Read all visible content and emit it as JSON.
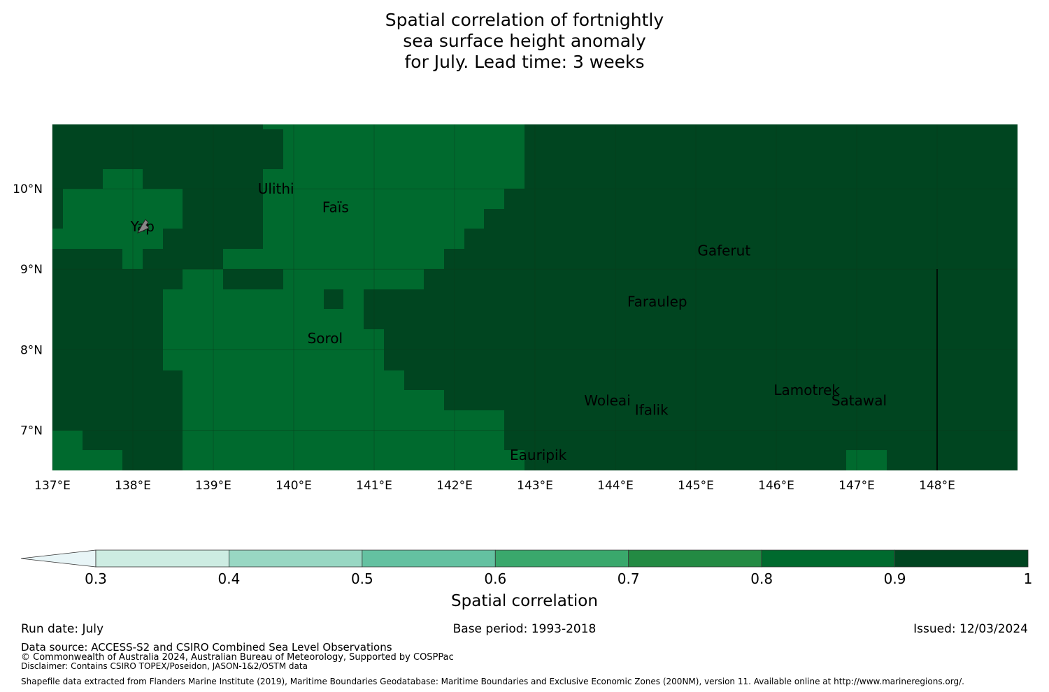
{
  "title_lines": [
    "Spatial correlation of fortnightly",
    "sea surface height anomaly",
    "for July. Lead time: 3 weeks"
  ],
  "map": {
    "lon_range": [
      137.0,
      149.0
    ],
    "lat_range": [
      6.5,
      10.8
    ],
    "x_ticks": [
      "137°E",
      "138°E",
      "139°E",
      "140°E",
      "141°E",
      "142°E",
      "143°E",
      "144°E",
      "145°E",
      "146°E",
      "147°E",
      "148°E"
    ],
    "y_ticks": [
      "10°N",
      "9°N",
      "8°N",
      "7°N"
    ],
    "colors": {
      "0.8-0.9": "#006a2e",
      "0.9-1": "#004520"
    },
    "islands": [
      {
        "name": "Yap",
        "lon": 138.12,
        "lat": 9.53
      },
      {
        "name": "Ulithi",
        "lon": 139.78,
        "lat": 10.0
      },
      {
        "name": "Faïs",
        "lon": 140.52,
        "lat": 9.77
      },
      {
        "name": "Gaferut",
        "lon": 145.35,
        "lat": 9.23
      },
      {
        "name": "Faraulep",
        "lon": 144.52,
        "lat": 8.6
      },
      {
        "name": "Sorol",
        "lon": 140.39,
        "lat": 8.14
      },
      {
        "name": "Woleai",
        "lon": 143.9,
        "lat": 7.37
      },
      {
        "name": "Ifalik",
        "lon": 144.45,
        "lat": 7.25
      },
      {
        "name": "Lamotrek",
        "lon": 146.38,
        "lat": 7.5
      },
      {
        "name": "Satawal",
        "lon": 147.03,
        "lat": 7.37
      },
      {
        "name": "Eauripik",
        "lon": 143.04,
        "lat": 6.69
      }
    ],
    "boundary_lon": 148.0
  },
  "colorbar": {
    "ticks": [
      "0.3",
      "0.4",
      "0.5",
      "0.6",
      "0.7",
      "0.8",
      "0.9",
      "1"
    ],
    "colors": [
      "#cdece2",
      "#98d7c3",
      "#64c1a1",
      "#3aa86c",
      "#238a43",
      "#006a2e",
      "#004520"
    ],
    "extend_color": "#e8f5f7",
    "label": "Spatial correlation"
  },
  "footer": {
    "run_date": "Run date: July",
    "base_period": "Base period: 1993-2018",
    "issued": "Issued: 12/03/2024",
    "data_source": "Data source: ACCESS-S2 and CSIRO Combined Sea Level Observations",
    "copyright": "© Commonwealth of Australia 2024, Australian Bureau of Meteorology, Supported by COSPPac",
    "disclaimer": "Disclaimer: Contains CSIRO TOPEX/Poseidon, JASON-1&2/OSTM data",
    "shapefile": "Shapefile data extracted from Flanders Marine Institute (2019), Maritime Boundaries Geodatabase: Maritime Boundaries and Exclusive Economic Zones (200NM), version 11. Available online at http://www.marineregions.org/."
  }
}
